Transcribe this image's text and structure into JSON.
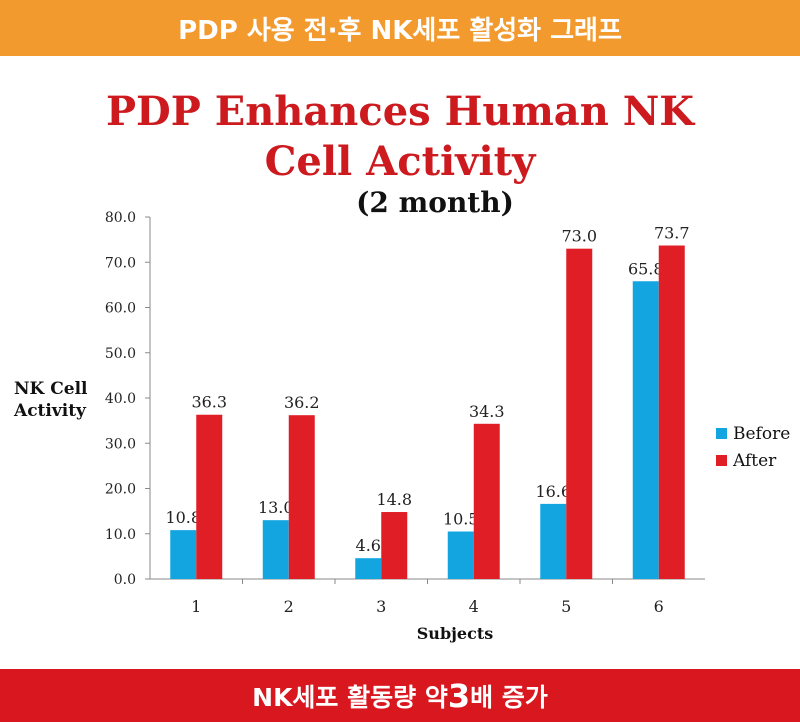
{
  "top_banner": "PDP 사용 전·후 NK세포 활성화 그래프",
  "title_line1": "PDP Enhances Human NK",
  "title_line2": "Cell Activity",
  "subtitle": "(2 month)",
  "bottom_banner": {
    "prefix": "NK세포 활동량 약 ",
    "highlight": "3",
    "suffix": "배 증가"
  },
  "colors": {
    "before": "#12a5e0",
    "after": "#e01e26",
    "title": "#cc1a1f",
    "top_banner": "#f29a2e",
    "bottom_banner": "#d8171f"
  },
  "chart_data": {
    "type": "bar",
    "title": "PDP Enhances Human NK Cell Activity",
    "subtitle": "(2 month)",
    "xlabel": "Subjects",
    "ylabel": "NK Cell Activity",
    "categories": [
      "1",
      "2",
      "3",
      "4",
      "5",
      "6"
    ],
    "ylim": [
      0,
      80
    ],
    "yticks": [
      "0.0",
      "10.0",
      "20.0",
      "30.0",
      "40.0",
      "50.0",
      "60.0",
      "70.0",
      "80.0"
    ],
    "series": [
      {
        "name": "Before",
        "values": [
          10.8,
          13.0,
          4.6,
          10.5,
          16.6,
          65.8
        ],
        "labels": [
          "10.8",
          "13.0",
          "4.6",
          "10.5",
          "16.6",
          "65.8"
        ]
      },
      {
        "name": "After",
        "values": [
          36.3,
          36.2,
          14.8,
          34.3,
          73.0,
          73.7
        ],
        "labels": [
          "36.3",
          "36.2",
          "14.8",
          "34.3",
          "73.0",
          "73.7"
        ]
      }
    ],
    "grid": false,
    "legend": "right"
  }
}
